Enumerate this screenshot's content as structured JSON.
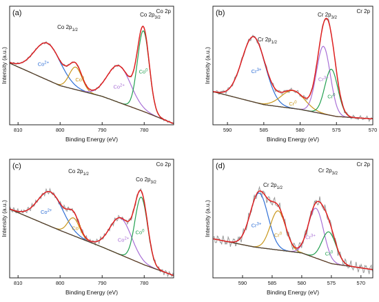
{
  "chart_data": [
    {
      "type": "line",
      "panel": "(a)",
      "tag": "Co 2p",
      "xlabel": "Binding Energy (eV)",
      "ylabel": "Intensity (a.u.)",
      "xlim": [
        812,
        773
      ],
      "x_reversed": true,
      "xticks": [
        810,
        800,
        790,
        780
      ],
      "ylim": [
        0,
        1
      ],
      "peak_labels": [
        "Co 2p1/2",
        "Co 2p3/2"
      ],
      "colors": {
        "raw": "#999999",
        "fit": "#e02020",
        "background": "#5a3a2a"
      },
      "components": [
        {
          "name": "Co2+",
          "center": 803.0,
          "height": 0.31,
          "width": 3.2,
          "color": "#2f6fd6"
        },
        {
          "name": "Co0",
          "center": 796.3,
          "height": 0.19,
          "width": 1.5,
          "color": "#c8961a"
        },
        {
          "name": "Co2+",
          "center": 786.0,
          "height": 0.31,
          "width": 2.8,
          "color": "#a86fd6"
        },
        {
          "name": "Co0",
          "center": 780.2,
          "height": 0.68,
          "width": 1.4,
          "color": "#22a050"
        }
      ],
      "baseline": [
        [
          812,
          0.52
        ],
        [
          800,
          0.33
        ],
        [
          790,
          0.24
        ],
        [
          780,
          0.11
        ],
        [
          773,
          0.01
        ]
      ],
      "noise": 0.01
    },
    {
      "type": "line",
      "panel": "(b)",
      "tag": "Cr 2p",
      "xlabel": "Binding Energy (eV)",
      "ylabel": "Intensity (a.u.)",
      "xlim": [
        592,
        570
      ],
      "x_reversed": true,
      "xticks": [
        590,
        585,
        580,
        575,
        570
      ],
      "ylim": [
        0,
        1
      ],
      "peak_labels": [
        "Cr 2p1/2",
        "Cr 2p3/2"
      ],
      "colors": {
        "raw": "#999999",
        "fit": "#e02020",
        "background": "#5a3a2a"
      },
      "components": [
        {
          "name": "Cr3+",
          "center": 586.4,
          "height": 0.55,
          "width": 1.6,
          "color": "#2f6fd6"
        },
        {
          "name": "Cr0",
          "center": 581.0,
          "height": 0.15,
          "width": 1.6,
          "color": "#c8961a"
        },
        {
          "name": "Cr3+",
          "center": 576.8,
          "height": 0.57,
          "width": 0.95,
          "color": "#a86fd6"
        },
        {
          "name": "Cr0",
          "center": 575.7,
          "height": 0.39,
          "width": 0.9,
          "color": "#22a050"
        }
      ],
      "baseline": [
        [
          592,
          0.28
        ],
        [
          585,
          0.17
        ],
        [
          580,
          0.13
        ],
        [
          575,
          0.07
        ],
        [
          570,
          0.05
        ]
      ],
      "noise": 0.02
    },
    {
      "type": "line",
      "panel": "(c)",
      "tag": "Co 2p",
      "xlabel": "Binding Energy (eV)",
      "ylabel": "Intensity (a.u.)",
      "xlim": [
        812,
        773
      ],
      "x_reversed": true,
      "xticks": [
        810,
        800,
        790,
        780
      ],
      "ylim": [
        0,
        1
      ],
      "peak_labels": [
        "Co 2p1/2",
        "Co 2p3/2"
      ],
      "colors": {
        "raw": "#999999",
        "fit": "#e02020",
        "background": "#5a3a2a"
      },
      "components": [
        {
          "name": "Co2+",
          "center": 802.3,
          "height": 0.29,
          "width": 3.0,
          "color": "#2f6fd6"
        },
        {
          "name": "Co0",
          "center": 796.8,
          "height": 0.15,
          "width": 1.4,
          "color": "#c8961a"
        },
        {
          "name": "Co2+",
          "center": 785.6,
          "height": 0.31,
          "width": 2.6,
          "color": "#a86fd6"
        },
        {
          "name": "Co0",
          "center": 780.7,
          "height": 0.56,
          "width": 1.5,
          "color": "#22a050"
        }
      ],
      "baseline": [
        [
          812,
          0.58
        ],
        [
          800,
          0.4
        ],
        [
          790,
          0.26
        ],
        [
          780,
          0.11
        ],
        [
          773,
          0.02
        ]
      ],
      "noise": 0.025
    },
    {
      "type": "line",
      "panel": "(d)",
      "tag": "Cr 2p",
      "xlabel": "Binding Energy (eV)",
      "ylabel": "Intensity (a.u.)",
      "xlim": [
        595,
        568
      ],
      "x_reversed": true,
      "xticks": [
        590,
        585,
        580,
        575,
        570
      ],
      "ylim": [
        0,
        1
      ],
      "peak_labels": [
        "Cr 2p1/2",
        "Cr 2p3/2"
      ],
      "colors": {
        "raw": "#999999",
        "fit": "#e02020",
        "background": "#5a3a2a"
      },
      "components": [
        {
          "name": "Cr3+",
          "center": 587.2,
          "height": 0.46,
          "width": 1.5,
          "color": "#2f6fd6"
        },
        {
          "name": "Cr0",
          "center": 584.0,
          "height": 0.33,
          "width": 1.3,
          "color": "#c8961a"
        },
        {
          "name": "Cr3+",
          "center": 577.6,
          "height": 0.42,
          "width": 1.3,
          "color": "#a86fd6"
        },
        {
          "name": "Cr0",
          "center": 575.4,
          "height": 0.26,
          "width": 1.2,
          "color": "#22a050"
        }
      ],
      "baseline": [
        [
          595,
          0.33
        ],
        [
          588,
          0.26
        ],
        [
          580,
          0.21
        ],
        [
          575,
          0.12
        ],
        [
          568,
          0.07
        ]
      ],
      "noise": 0.045
    }
  ]
}
